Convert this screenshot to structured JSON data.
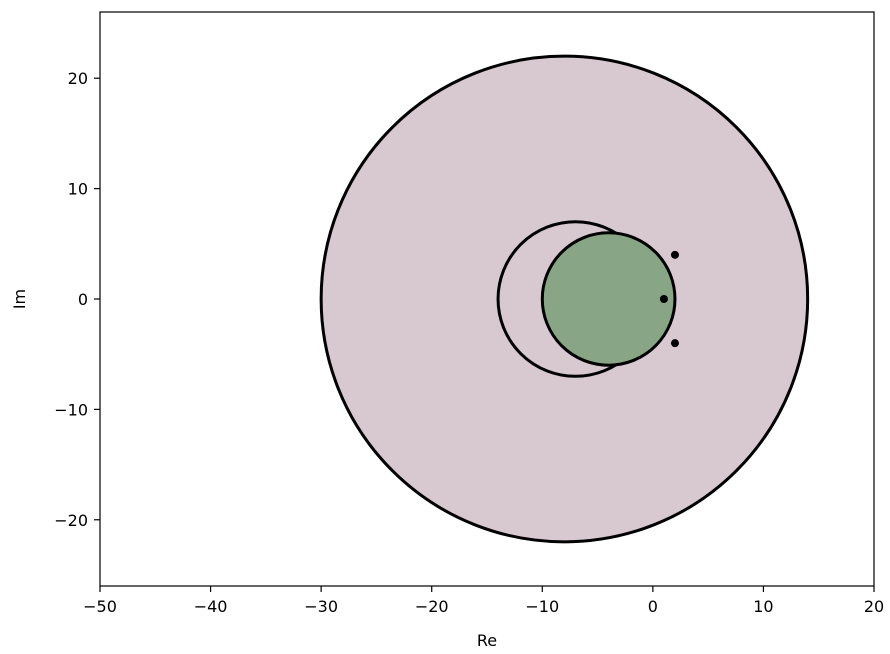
{
  "chart_data": {
    "type": "scatter",
    "title": "",
    "xlabel": "Re",
    "ylabel": "Im",
    "xlim": [
      -50,
      20
    ],
    "ylim": [
      -26,
      26
    ],
    "xticks": [
      -50,
      -40,
      -30,
      -20,
      -10,
      0,
      10,
      20
    ],
    "yticks": [
      -20,
      -10,
      0,
      10,
      20
    ],
    "grid": false,
    "legend": "none",
    "circles": [
      {
        "center": [
          -8,
          0
        ],
        "radius": 22,
        "fill": "#d8c8d0",
        "stroke": "#000000"
      },
      {
        "center": [
          -7,
          0
        ],
        "radius": 7,
        "fill": "none",
        "stroke": "#000000"
      },
      {
        "center": [
          -4,
          0
        ],
        "radius": 6,
        "fill": "#88a585",
        "stroke": "#000000"
      }
    ],
    "points": [
      {
        "x": 2,
        "y": 4
      },
      {
        "x": 1,
        "y": 0
      },
      {
        "x": 2,
        "y": -4
      }
    ],
    "colors": {
      "outer_disk": "#d8c8d0",
      "inner_disk": "#88a585",
      "stroke": "#000000"
    }
  }
}
